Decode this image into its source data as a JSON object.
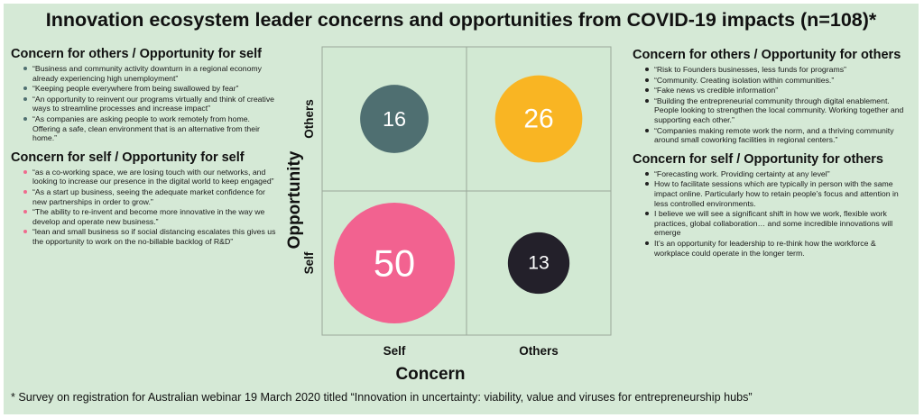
{
  "title": "Innovation ecosystem leader concerns and opportunities from COVID-19 impacts (n=108)*",
  "colors": {
    "background": "#d5e9d6",
    "quadrant_border": "#9aa89a",
    "plot_fill": "#d2e9d3",
    "bullet_teal": "#4f6f71",
    "bullet_pink": "#ef6b8e",
    "bullet_dark": "#222222"
  },
  "left_panel": {
    "sections": [
      {
        "heading": "Concern for others / Opportunity for self",
        "bullet_color": "#4f6f71",
        "items": [
          "“Business and community activity downturn in a regional economy already experiencing high unemployment”",
          "“Keeping people everywhere from being swallowed by fear”",
          "“An opportunity to reinvent our programs virtually and think of creative ways to streamline processes and increase impact”",
          "“As companies are asking people to work remotely from home.  Offering a safe, clean environment that is an alternative from their home.”"
        ]
      },
      {
        "heading": "Concern for self / Opportunity for self",
        "bullet_color": "#ef6b8e",
        "items": [
          "“as a co-working space, we are losing touch with our networks, and looking to increase our presence in the digital world to keep engaged”",
          "“As a start up business, seeing the adequate market confidence for new partnerships in order to grow.”",
          "“The ability to re-invent and become more innovative in the way we develop and operate new business.”",
          "“lean and small business so if social distancing escalates this gives us the opportunity to work on the no-billable backlog of R&D”"
        ]
      }
    ]
  },
  "right_panel": {
    "sections": [
      {
        "heading": "Concern for others / Opportunity for others",
        "bullet_color": "#222222",
        "items": [
          "“Risk to Founders businesses, less funds for programs”",
          "“Community. Creating isolation within communities.”",
          "“Fake news vs credible information”",
          "“Building the entrepreneurial community through digital enablement. People looking to strengthen the local community. Working together and supporting each other.”",
          "“Companies making remote work the norm, and a thriving community around small coworking facilities in regional centers.”"
        ]
      },
      {
        "heading": "Concern for self / Opportunity for others",
        "bullet_color": "#222222",
        "items": [
          "“Forecasting work. Providing certainty at any level”",
          "How to facilitate sessions which are typically in person with the same impact online. Particularly how to retain people’s focus and attention in less controlled environments.",
          "I believe we will see a significant shift in how we work, flexible work practices, global collaboration… and some incredible innovations will emerge",
          "It’s an opportunity for leadership to re-think how the workforce & workplace could operate in the longer term."
        ]
      }
    ]
  },
  "chart_data": {
    "type": "scatter",
    "xlabel": "Concern",
    "ylabel": "Opportunity",
    "x_categories": [
      "Self",
      "Others"
    ],
    "y_categories": [
      "Self",
      "Others"
    ],
    "points": [
      {
        "x": "Others",
        "y": "Others",
        "value": 26,
        "color": "#f9b523",
        "label_color": "#ffffff"
      },
      {
        "x": "Self",
        "y": "Others",
        "value": 16,
        "color": "#4f6f71",
        "label_color": "#ffffff"
      },
      {
        "x": "Self",
        "y": "Self",
        "value": 50,
        "color": "#f26290",
        "label_color": "#ffffff"
      },
      {
        "x": "Others",
        "y": "Self",
        "value": 13,
        "color": "#23202a",
        "label_color": "#ffffff"
      }
    ],
    "grid": true
  },
  "footnote": "* Survey on registration for Australian webinar 19 March 2020  titled “Innovation in uncertainty: viability, value and viruses for entrepreneurship hubs”"
}
